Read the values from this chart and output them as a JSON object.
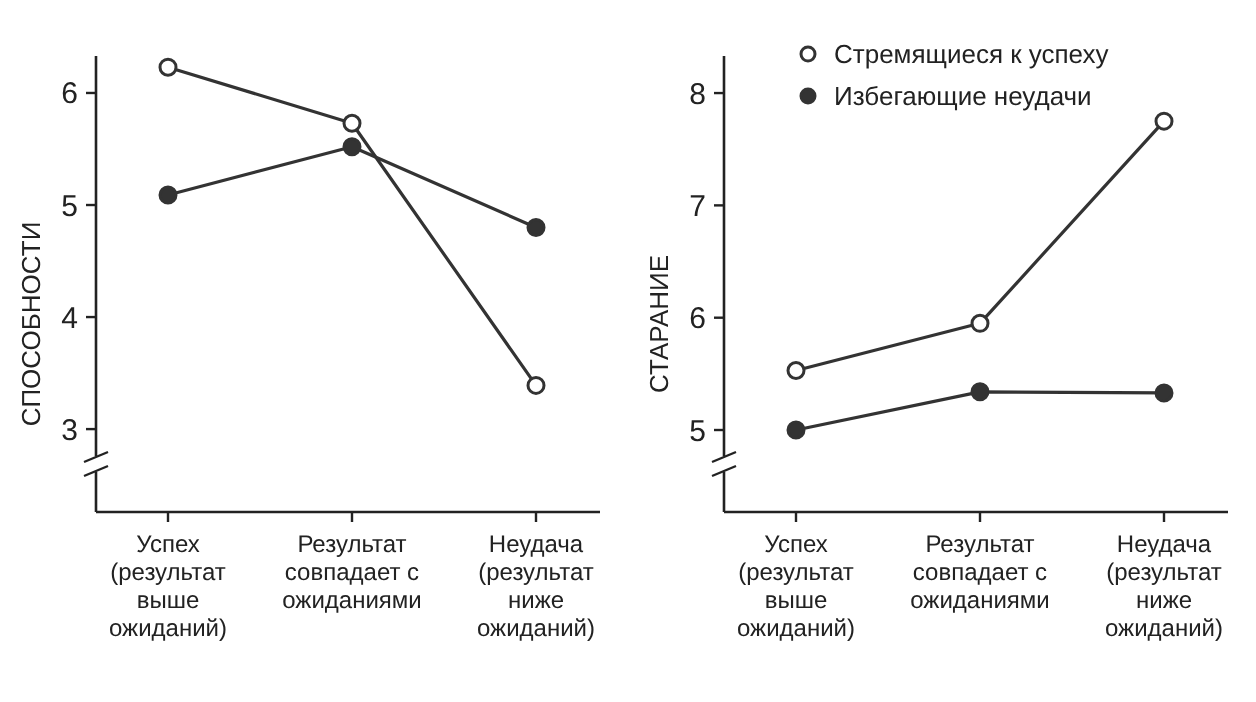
{
  "chart_data": [
    {
      "type": "line",
      "ylabel": "СПОСОБНОСТИ",
      "categories": [
        "Успех (результат выше ожиданий)",
        "Результат совпадает с ожиданиями",
        "Неудача (результат ниже ожиданий)"
      ],
      "ylim": [
        2.26,
        6.33
      ],
      "yticks": [
        3,
        4,
        5,
        6
      ],
      "marker": "circle",
      "grid": false,
      "legend": false,
      "series": [
        {
          "color": "#333333",
          "values": [
            6.23,
            5.73,
            3.39
          ]
        },
        {
          "color": "#333333",
          "values": [
            5.09,
            5.52,
            4.8
          ]
        }
      ]
    },
    {
      "type": "line",
      "ylabel": "СТАРАНИЕ",
      "categories": [
        "Успех (результат выше ожиданий)",
        "Результат совпадает с ожиданиями",
        "Неудача (результат ниже ожиданий)"
      ],
      "ylim": [
        4.27,
        8.33
      ],
      "yticks": [
        5,
        6,
        7,
        8
      ],
      "marker": "circle",
      "grid": false,
      "legend": "top",
      "series": [
        {
          "name": "Стремящиеся к успеху",
          "color": "#333333",
          "values": [
            5.53,
            5.95,
            7.75
          ]
        },
        {
          "name": "Избегающие неудачи",
          "color": "#333333",
          "values": [
            5.0,
            5.34,
            5.33
          ]
        }
      ]
    }
  ]
}
